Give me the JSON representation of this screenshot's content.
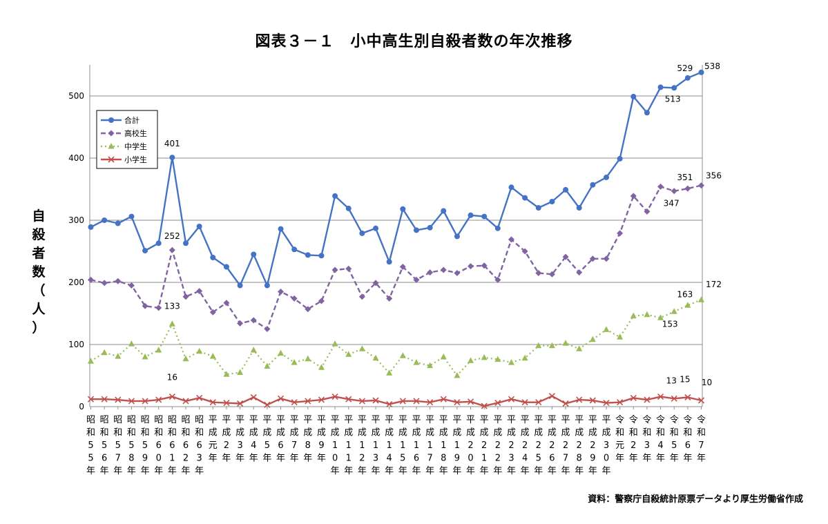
{
  "title": "図表３－１　小中高生別自殺者数の年次推移",
  "source": "資料：警察庁自殺統計原票データより厚生労働省作成",
  "chart_data": {
    "type": "line",
    "title": "図表３－１　小中高生別自殺者数の年次推移",
    "ylabel": "自殺者数（人）",
    "xlabel": "",
    "ylim": [
      0,
      550
    ],
    "yticks": [
      0,
      100,
      200,
      300,
      400,
      500
    ],
    "grid": true,
    "legend": "top-left",
    "categories": [
      [
        "昭",
        "和",
        "5",
        "5",
        "年"
      ],
      [
        "昭",
        "和",
        "5",
        "6",
        "年"
      ],
      [
        "昭",
        "和",
        "5",
        "7",
        "年"
      ],
      [
        "昭",
        "和",
        "5",
        "8",
        "年"
      ],
      [
        "昭",
        "和",
        "5",
        "9",
        "年"
      ],
      [
        "昭",
        "和",
        "6",
        "0",
        "年"
      ],
      [
        "昭",
        "和",
        "6",
        "1",
        "年"
      ],
      [
        "昭",
        "和",
        "6",
        "2",
        "年"
      ],
      [
        "昭",
        "和",
        "6",
        "3",
        "年"
      ],
      [
        "平",
        "成",
        "元",
        "年"
      ],
      [
        "平",
        "成",
        "2",
        "年"
      ],
      [
        "平",
        "成",
        "3",
        "年"
      ],
      [
        "平",
        "成",
        "4",
        "年"
      ],
      [
        "平",
        "成",
        "5",
        "年"
      ],
      [
        "平",
        "成",
        "6",
        "年"
      ],
      [
        "平",
        "成",
        "7",
        "年"
      ],
      [
        "平",
        "成",
        "8",
        "年"
      ],
      [
        "平",
        "成",
        "9",
        "年"
      ],
      [
        "平",
        "成",
        "1",
        "0",
        "年"
      ],
      [
        "平",
        "成",
        "1",
        "1",
        "年"
      ],
      [
        "平",
        "成",
        "1",
        "2",
        "年"
      ],
      [
        "平",
        "成",
        "1",
        "3",
        "年"
      ],
      [
        "平",
        "成",
        "1",
        "4",
        "年"
      ],
      [
        "平",
        "成",
        "1",
        "5",
        "年"
      ],
      [
        "平",
        "成",
        "1",
        "6",
        "年"
      ],
      [
        "平",
        "成",
        "1",
        "7",
        "年"
      ],
      [
        "平",
        "成",
        "1",
        "8",
        "年"
      ],
      [
        "平",
        "成",
        "1",
        "9",
        "年"
      ],
      [
        "平",
        "成",
        "2",
        "0",
        "年"
      ],
      [
        "平",
        "成",
        "2",
        "1",
        "年"
      ],
      [
        "平",
        "成",
        "2",
        "2",
        "年"
      ],
      [
        "平",
        "成",
        "2",
        "3",
        "年"
      ],
      [
        "平",
        "成",
        "2",
        "4",
        "年"
      ],
      [
        "平",
        "成",
        "2",
        "5",
        "年"
      ],
      [
        "平",
        "成",
        "2",
        "6",
        "年"
      ],
      [
        "平",
        "成",
        "2",
        "7",
        "年"
      ],
      [
        "平",
        "成",
        "2",
        "8",
        "年"
      ],
      [
        "平",
        "成",
        "2",
        "9",
        "年"
      ],
      [
        "平",
        "成",
        "3",
        "0",
        "年"
      ],
      [
        "令",
        "和",
        "元",
        "年"
      ],
      [
        "令",
        "和",
        "2",
        "年"
      ],
      [
        "令",
        "和",
        "3",
        "年"
      ],
      [
        "令",
        "和",
        "4",
        "年"
      ],
      [
        "令",
        "和",
        "5",
        "年"
      ],
      [
        "令",
        "和",
        "6",
        "年"
      ],
      [
        "令",
        "和",
        "7",
        "年"
      ]
    ],
    "series": [
      {
        "name": "合計",
        "color": "#4472C4",
        "style": "solid",
        "marker": "circle",
        "values": [
          289,
          300,
          295,
          306,
          251,
          263,
          401,
          263,
          290,
          240,
          225,
          195,
          245,
          195,
          286,
          253,
          244,
          243,
          339,
          319,
          279,
          287,
          233,
          318,
          284,
          288,
          315,
          274,
          308,
          306,
          287,
          353,
          336,
          320,
          330,
          349,
          320,
          357,
          369,
          399,
          499,
          473,
          514,
          513,
          529,
          538
        ]
      },
      {
        "name": "高校生",
        "color": "#8064A2",
        "style": "dashed",
        "marker": "diamond",
        "values": [
          204,
          199,
          202,
          195,
          162,
          159,
          252,
          177,
          186,
          152,
          167,
          134,
          139,
          125,
          185,
          174,
          157,
          170,
          220,
          222,
          177,
          199,
          174,
          225,
          204,
          216,
          220,
          215,
          226,
          227,
          204,
          269,
          250,
          215,
          213,
          241,
          216,
          238,
          238,
          279,
          339,
          314,
          354,
          347,
          351,
          356
        ]
      },
      {
        "name": "中学生",
        "color": "#9BBB59",
        "style": "dotted",
        "marker": "triangle",
        "values": [
          73,
          87,
          81,
          101,
          80,
          91,
          133,
          77,
          89,
          81,
          52,
          55,
          91,
          65,
          86,
          71,
          77,
          63,
          101,
          84,
          93,
          78,
          54,
          82,
          71,
          66,
          80,
          50,
          74,
          79,
          76,
          71,
          78,
          98,
          98,
          102,
          93,
          108,
          124,
          112,
          146,
          148,
          143,
          153,
          163,
          172
        ]
      },
      {
        "name": "小学生",
        "color": "#C0504D",
        "style": "solid",
        "marker": "x",
        "values": [
          12,
          12,
          11,
          9,
          9,
          11,
          16,
          9,
          14,
          7,
          6,
          5,
          15,
          3,
          13,
          7,
          9,
          11,
          16,
          12,
          9,
          10,
          4,
          9,
          9,
          7,
          12,
          7,
          8,
          1,
          6,
          12,
          7,
          7,
          17,
          5,
          11,
          10,
          6,
          7,
          14,
          11,
          16,
          13,
          15,
          10
        ]
      }
    ],
    "annotations": [
      {
        "series": 0,
        "index": 6,
        "text": "401"
      },
      {
        "series": 0,
        "index": 43,
        "text": "513"
      },
      {
        "series": 0,
        "index": 44,
        "text": "529"
      },
      {
        "series": 0,
        "index": 45,
        "text": "538"
      },
      {
        "series": 1,
        "index": 6,
        "text": "252"
      },
      {
        "series": 1,
        "index": 43,
        "text": "347"
      },
      {
        "series": 1,
        "index": 44,
        "text": "351"
      },
      {
        "series": 1,
        "index": 45,
        "text": "356"
      },
      {
        "series": 2,
        "index": 6,
        "text": "133"
      },
      {
        "series": 2,
        "index": 43,
        "text": "153"
      },
      {
        "series": 2,
        "index": 44,
        "text": "163"
      },
      {
        "series": 2,
        "index": 45,
        "text": "172"
      },
      {
        "series": 3,
        "index": 6,
        "text": "16"
      },
      {
        "series": 3,
        "index": 43,
        "text": "13"
      },
      {
        "series": 3,
        "index": 44,
        "text": "15"
      },
      {
        "series": 3,
        "index": 45,
        "text": "10"
      }
    ]
  }
}
